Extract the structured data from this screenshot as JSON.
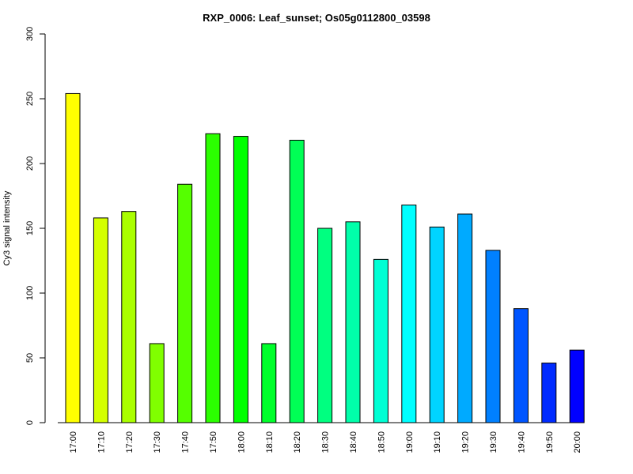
{
  "chart_data": {
    "type": "bar",
    "title": "RXP_0006: Leaf_sunset; Os05g0112800_03598",
    "xlabel": "",
    "ylabel": "Cy3 signal intensity",
    "ylim": [
      0,
      300
    ],
    "yticks": [
      0,
      50,
      100,
      150,
      200,
      250,
      300
    ],
    "grid": false,
    "categories": [
      "17:00",
      "17:10",
      "17:20",
      "17:30",
      "17:40",
      "17:50",
      "18:00",
      "18:10",
      "18:20",
      "18:30",
      "18:40",
      "18:50",
      "19:00",
      "19:10",
      "19:20",
      "19:30",
      "19:40",
      "19:50",
      "20:00"
    ],
    "values": [
      254,
      158,
      163,
      61,
      184,
      223,
      221,
      61,
      218,
      150,
      155,
      126,
      168,
      151,
      161,
      133,
      88,
      46,
      56
    ],
    "colors": [
      "#FFFF00",
      "#D4FF00",
      "#AAFF00",
      "#80FF00",
      "#55FF00",
      "#2BFF00",
      "#00FF00",
      "#00FF2B",
      "#00FF55",
      "#00FF80",
      "#00FFAA",
      "#00FFD4",
      "#00FFFF",
      "#00D4FF",
      "#00AAFF",
      "#0080FF",
      "#0055FF",
      "#002BFF",
      "#0000FF"
    ]
  }
}
